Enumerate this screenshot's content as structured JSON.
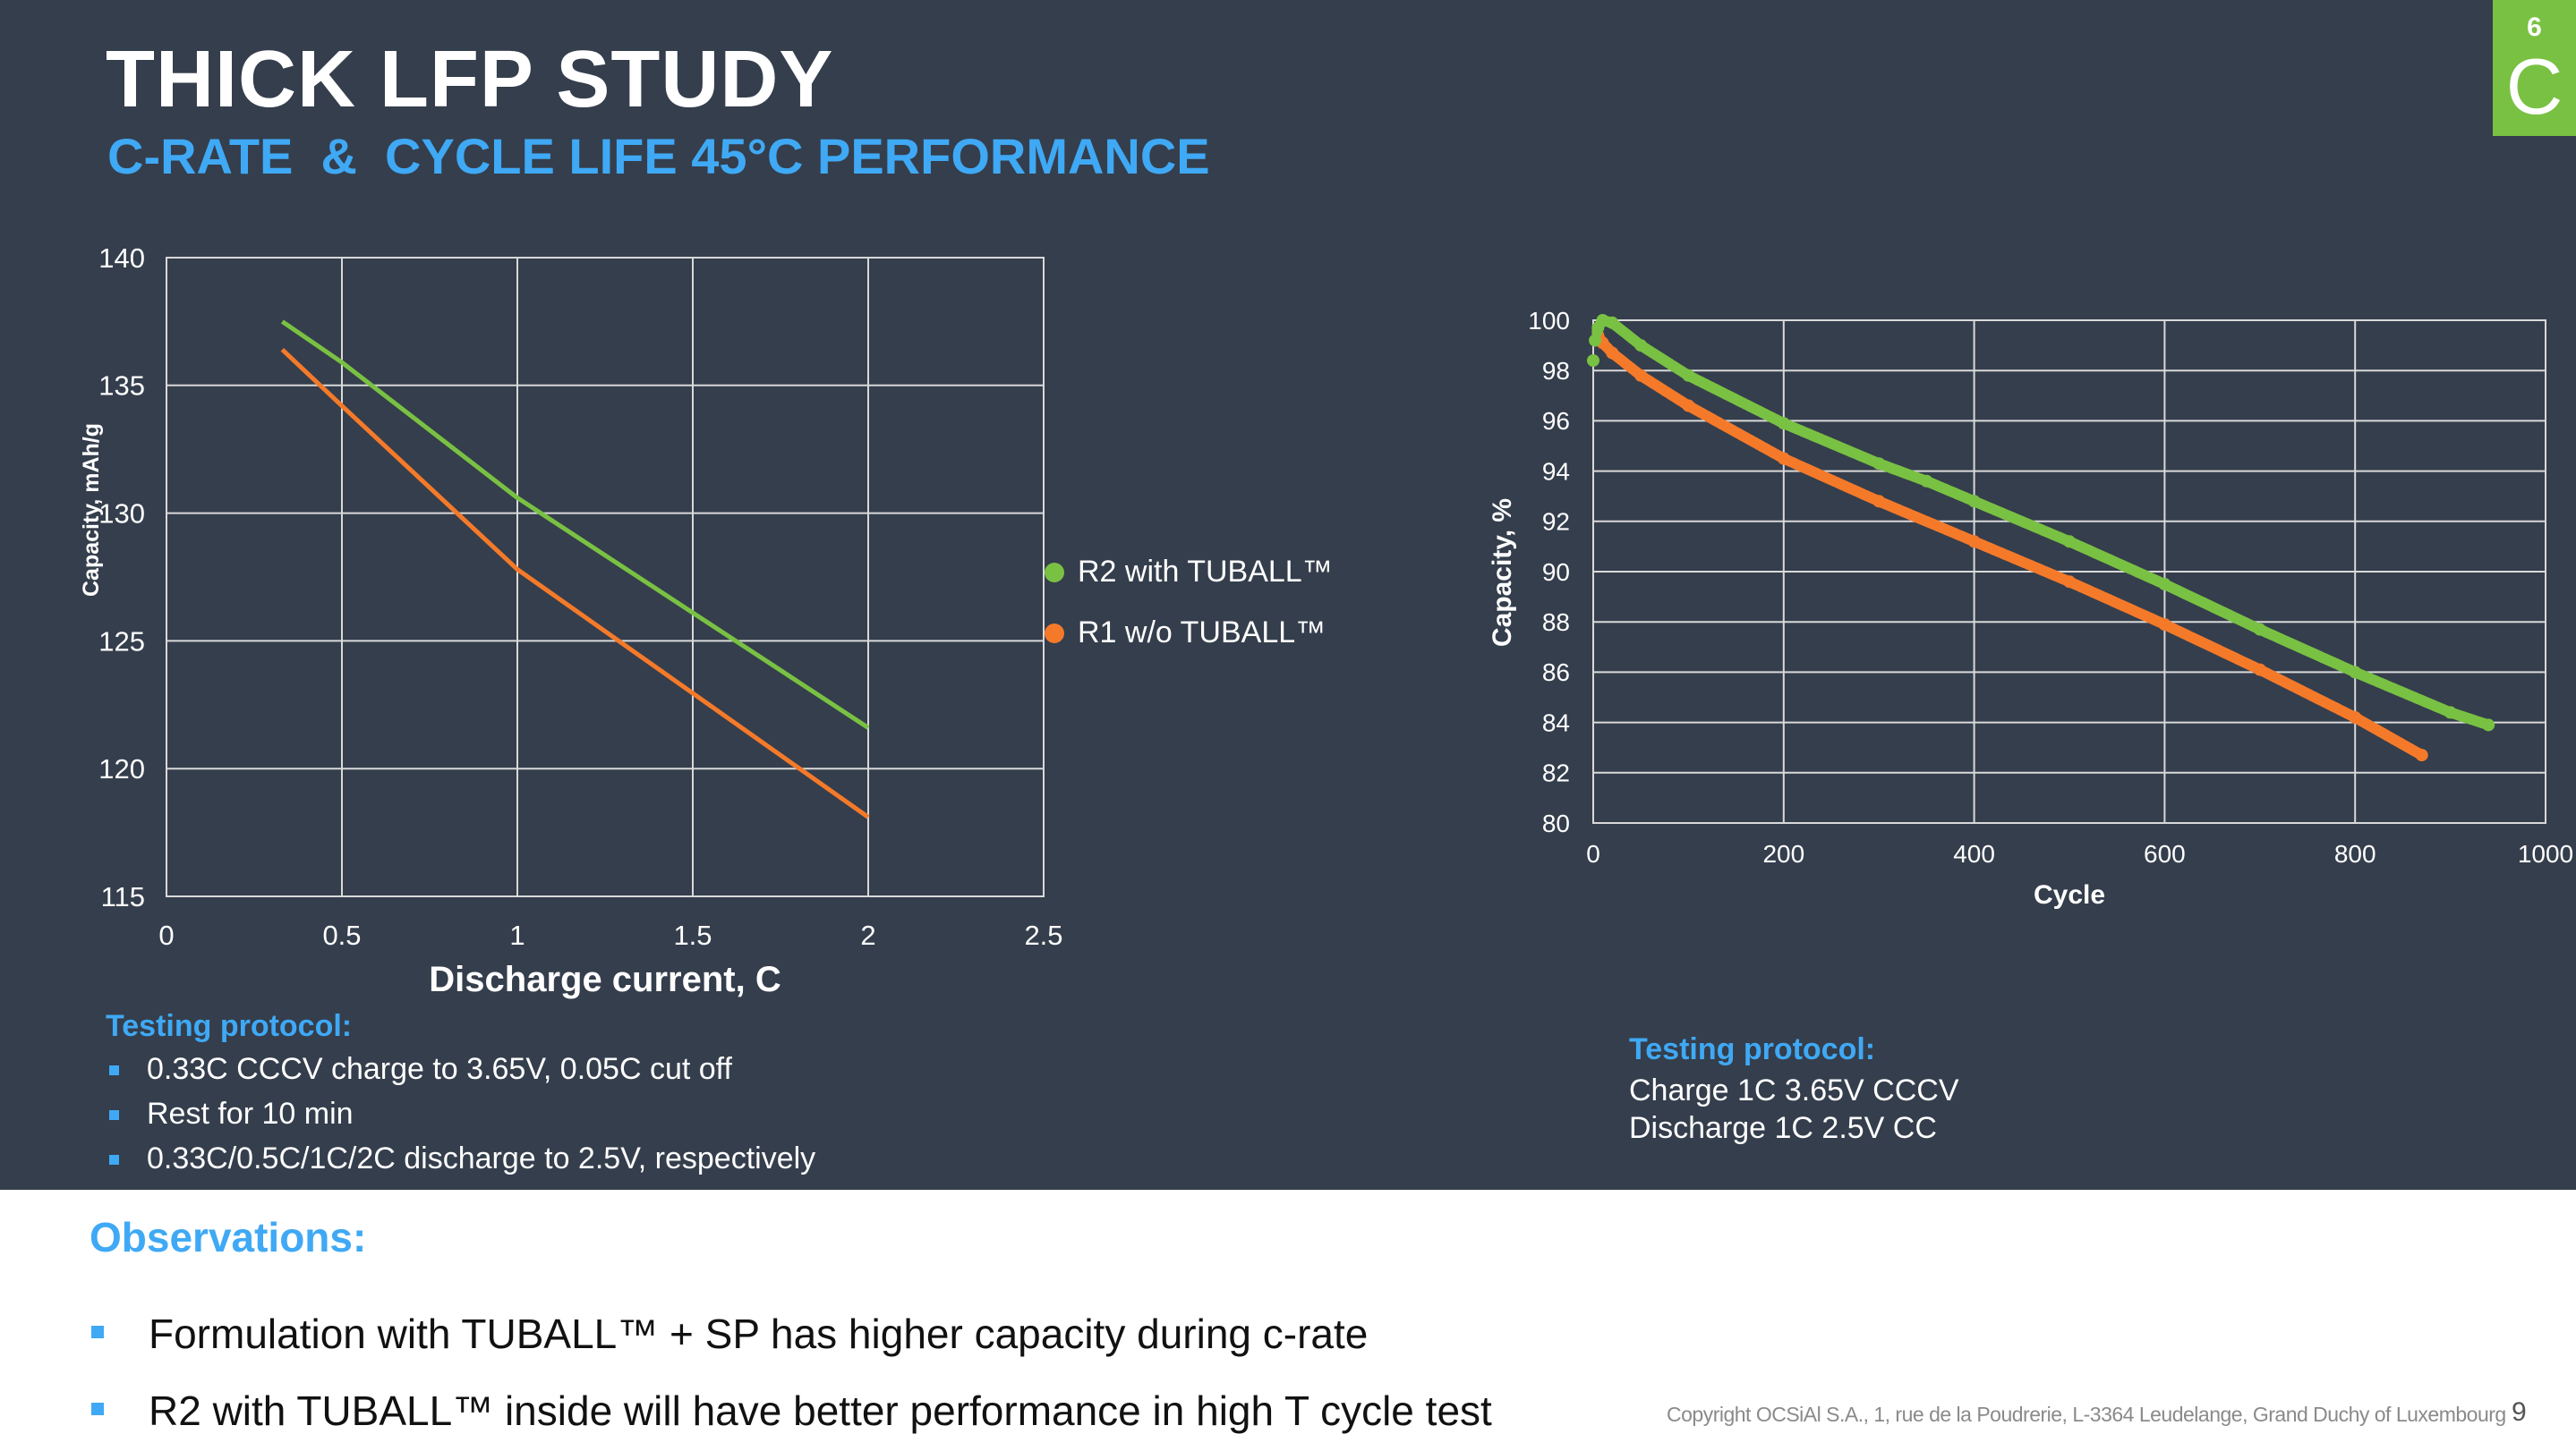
{
  "slide": {
    "title": "THICK LFP STUDY",
    "subtitle": "C-RATE  &  CYCLE LIFE 45°C PERFORMANCE",
    "logo_superscript": "6",
    "logo_letter": "C",
    "page_number": "9",
    "copyright": "Copyright OCSiAl S.A., 1, rue de la Poudrerie, L-3364 Leudelange, Grand Duchy of Luxembourg"
  },
  "colors": {
    "background": "#353e4c",
    "accent_blue": "#3fa9f5",
    "series_green": "#79c143",
    "series_orange": "#f47a2a",
    "grid": "#d9d9d9",
    "logo": "#79c143"
  },
  "left_protocol": {
    "heading": "Testing protocol:",
    "items": [
      "0.33C CCCV charge to 3.65V, 0.05C cut off",
      "Rest for 10 min",
      "0.33C/0.5C/1C/2C discharge to 2.5V, respectively"
    ]
  },
  "right_protocol": {
    "heading": "Testing protocol:",
    "lines": [
      "Charge 1C 3.65V CCCV",
      "Discharge 1C 2.5V CC"
    ]
  },
  "observations": {
    "heading": "Observations:",
    "items": [
      "Formulation with TUBALL™ + SP has higher capacity during c-rate",
      "R2 with TUBALL™ inside will have better performance in high T cycle test"
    ]
  },
  "chart_data": [
    {
      "type": "line",
      "title": "",
      "xlabel": "Discharge current, C",
      "ylabel": "Capacity, mAh/g",
      "xlim": [
        0,
        2.5
      ],
      "ylim": [
        115,
        140
      ],
      "xticks": [
        0,
        0.5,
        1,
        1.5,
        2,
        2.5
      ],
      "xtick_labels": [
        "0",
        "0.5",
        "1",
        "1.5",
        "2",
        "2.5"
      ],
      "yticks": [
        115,
        120,
        125,
        130,
        135,
        140
      ],
      "ytick_labels": [
        "115",
        "120",
        "125",
        "130",
        "135",
        "140"
      ],
      "grid": true,
      "legend": "right",
      "x": [
        0.33,
        0.5,
        1,
        2
      ],
      "series": [
        {
          "name": "R2 with TUBALL™",
          "color": "#79c143",
          "values": [
            137.5,
            135.9,
            130.6,
            121.6
          ]
        },
        {
          "name": "R1 w/o TUBALL™",
          "color": "#f47a2a",
          "values": [
            136.4,
            134.2,
            127.8,
            118.1
          ]
        }
      ]
    },
    {
      "type": "scatter",
      "title": "",
      "xlabel": "Cycle",
      "ylabel": "Capacity, %",
      "xlim": [
        0,
        1000
      ],
      "ylim": [
        80,
        100
      ],
      "xticks": [
        0,
        200,
        400,
        600,
        800,
        1000
      ],
      "xtick_labels": [
        "0",
        "200",
        "400",
        "600",
        "800",
        "1000"
      ],
      "yticks": [
        80,
        82,
        84,
        86,
        88,
        90,
        92,
        94,
        96,
        98,
        100
      ],
      "ytick_labels": [
        "80",
        "82",
        "84",
        "86",
        "88",
        "90",
        "92",
        "94",
        "96",
        "98",
        "100"
      ],
      "grid": true,
      "series": [
        {
          "name": "R2 with TUBALL™",
          "color": "#79c143",
          "x": [
            0,
            2,
            5,
            10,
            20,
            50,
            100,
            200,
            300,
            350,
            400,
            500,
            600,
            700,
            800,
            900,
            940
          ],
          "values": [
            98.4,
            99.2,
            99.7,
            100.0,
            99.9,
            99.0,
            97.8,
            95.9,
            94.3,
            93.6,
            92.8,
            91.2,
            89.5,
            87.7,
            86.0,
            84.4,
            83.9
          ]
        },
        {
          "name": "R1 w/o TUBALL™",
          "color": "#f47a2a",
          "x": [
            5,
            10,
            20,
            50,
            100,
            200,
            300,
            400,
            500,
            600,
            700,
            800,
            870
          ],
          "values": [
            99.4,
            99.1,
            98.7,
            97.8,
            96.6,
            94.5,
            92.8,
            91.2,
            89.6,
            87.9,
            86.1,
            84.2,
            82.7
          ]
        }
      ]
    }
  ]
}
